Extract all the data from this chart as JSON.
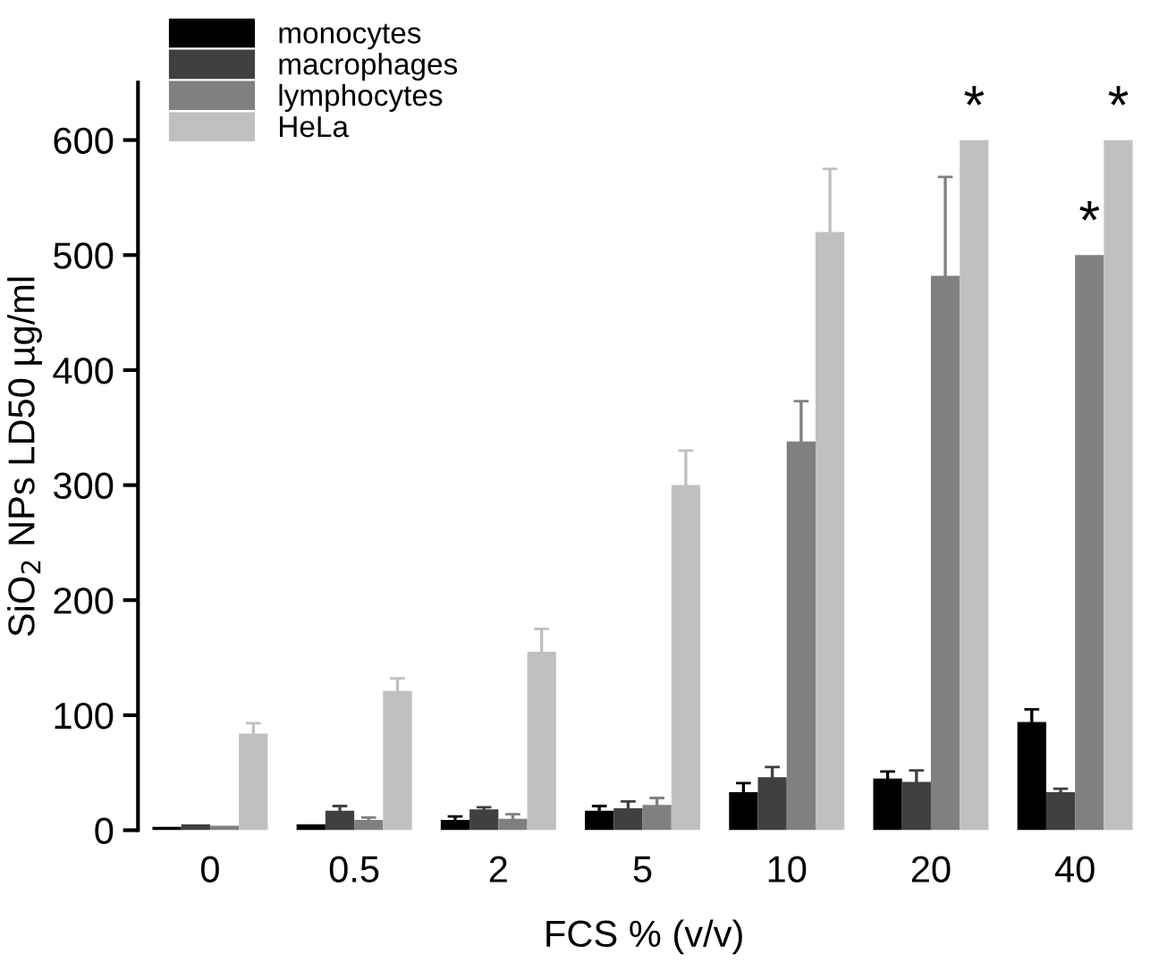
{
  "chart_data": {
    "type": "bar",
    "xlabel": "FCS % (v/v)",
    "ylabel": "SiO$_{2}$ NPs LD50 µg/ml",
    "categories": [
      "0",
      "0.5",
      "2",
      "5",
      "10",
      "20",
      "40"
    ],
    "series": [
      {
        "name": "monocytes",
        "color": "#000000",
        "values": [
          3,
          5,
          9,
          17,
          33,
          45,
          94
        ],
        "errors": [
          null,
          null,
          3,
          4,
          8,
          6,
          11
        ]
      },
      {
        "name": "macrophages",
        "color": "#404040",
        "values": [
          5,
          17,
          18,
          19,
          46,
          42,
          33
        ],
        "errors": [
          null,
          4,
          2,
          6,
          9,
          10,
          3
        ]
      },
      {
        "name": "lymphocytes",
        "color": "#808080",
        "values": [
          4,
          9,
          10,
          22,
          338,
          482,
          500
        ],
        "errors": [
          null,
          2,
          4,
          6,
          35,
          86,
          null
        ],
        "value_labels": [
          null,
          null,
          null,
          null,
          null,
          null,
          "*"
        ]
      },
      {
        "name": "HeLa",
        "color": "#c0c0c0",
        "values": [
          84,
          121,
          155,
          300,
          520,
          600,
          600
        ],
        "errors": [
          9,
          11,
          20,
          30,
          55,
          null,
          null
        ],
        "value_labels": [
          null,
          null,
          null,
          null,
          null,
          "*",
          "*"
        ]
      }
    ],
    "ylim": [
      0,
      650
    ],
    "yticks": [
      0,
      100,
      200,
      300,
      400,
      500,
      600
    ],
    "legend": "top left",
    "grid": false
  }
}
